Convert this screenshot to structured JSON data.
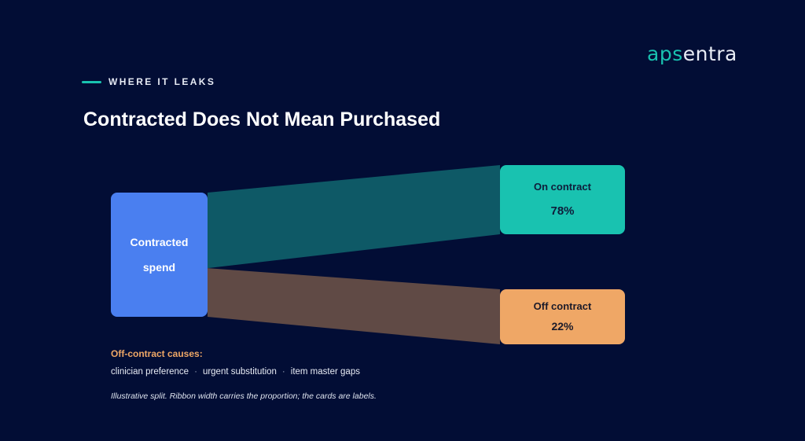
{
  "logo": {
    "part1": "aps",
    "part2": "entra"
  },
  "eyebrow": "WHERE IT LEAKS",
  "title": "Contracted Does Not Mean Purchased",
  "source": {
    "line1": "Contracted",
    "line2": "spend",
    "color": "#4a7ff0"
  },
  "targets": [
    {
      "label": "On contract",
      "value": "78%",
      "share": 78,
      "color": "#19c2b0",
      "ribbon_color": "#0e5966"
    },
    {
      "label": "Off contract",
      "value": "22%",
      "share": 22,
      "color": "#efa766",
      "ribbon_color": "#604a45"
    }
  ],
  "causes": {
    "title": "Off-contract causes:",
    "items": [
      "clinician preference",
      "urgent substitution",
      "item master gaps"
    ],
    "separator": "·"
  },
  "note": "Illustrative split. Ribbon width carries the proportion; the cards are labels."
}
